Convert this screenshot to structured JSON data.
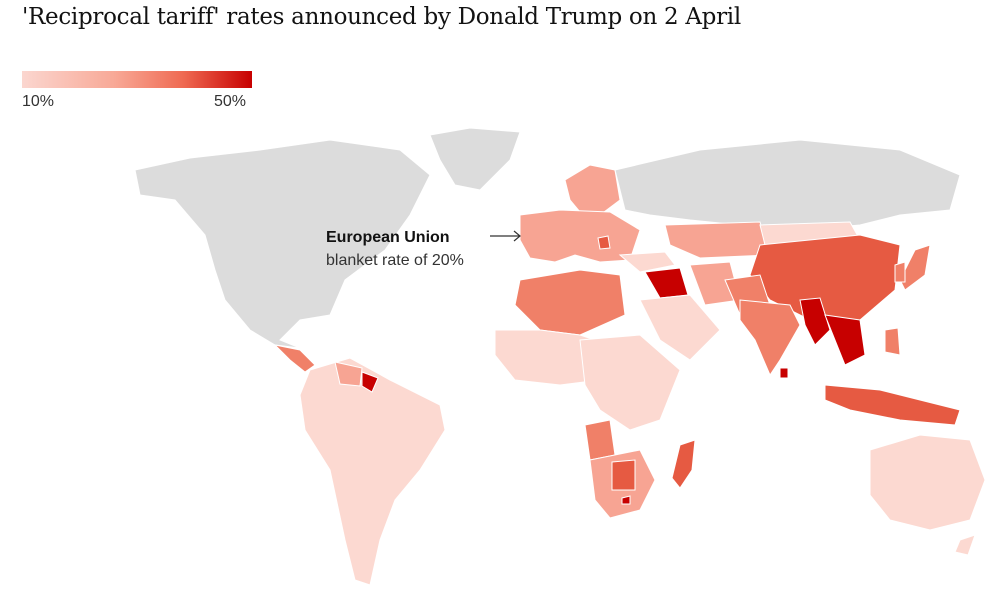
{
  "title": "'Reciprocal tariff' rates announced by Donald Trump on 2 April",
  "legend": {
    "min_label": "10%",
    "max_label": "50%",
    "colors": [
      "#fbd6cf",
      "#f8a997",
      "#ef6a52",
      "#c70000"
    ]
  },
  "annotation": {
    "heading": "European Union",
    "text": "blanket rate of 20%"
  },
  "map_colors": {
    "no_data": "#dcdcdc",
    "tier_10": "#fcd9d1",
    "tier_20": "#f7a493",
    "tier_30": "#f08068",
    "tier_40": "#e65a42",
    "tier_50": "#c70000"
  }
}
